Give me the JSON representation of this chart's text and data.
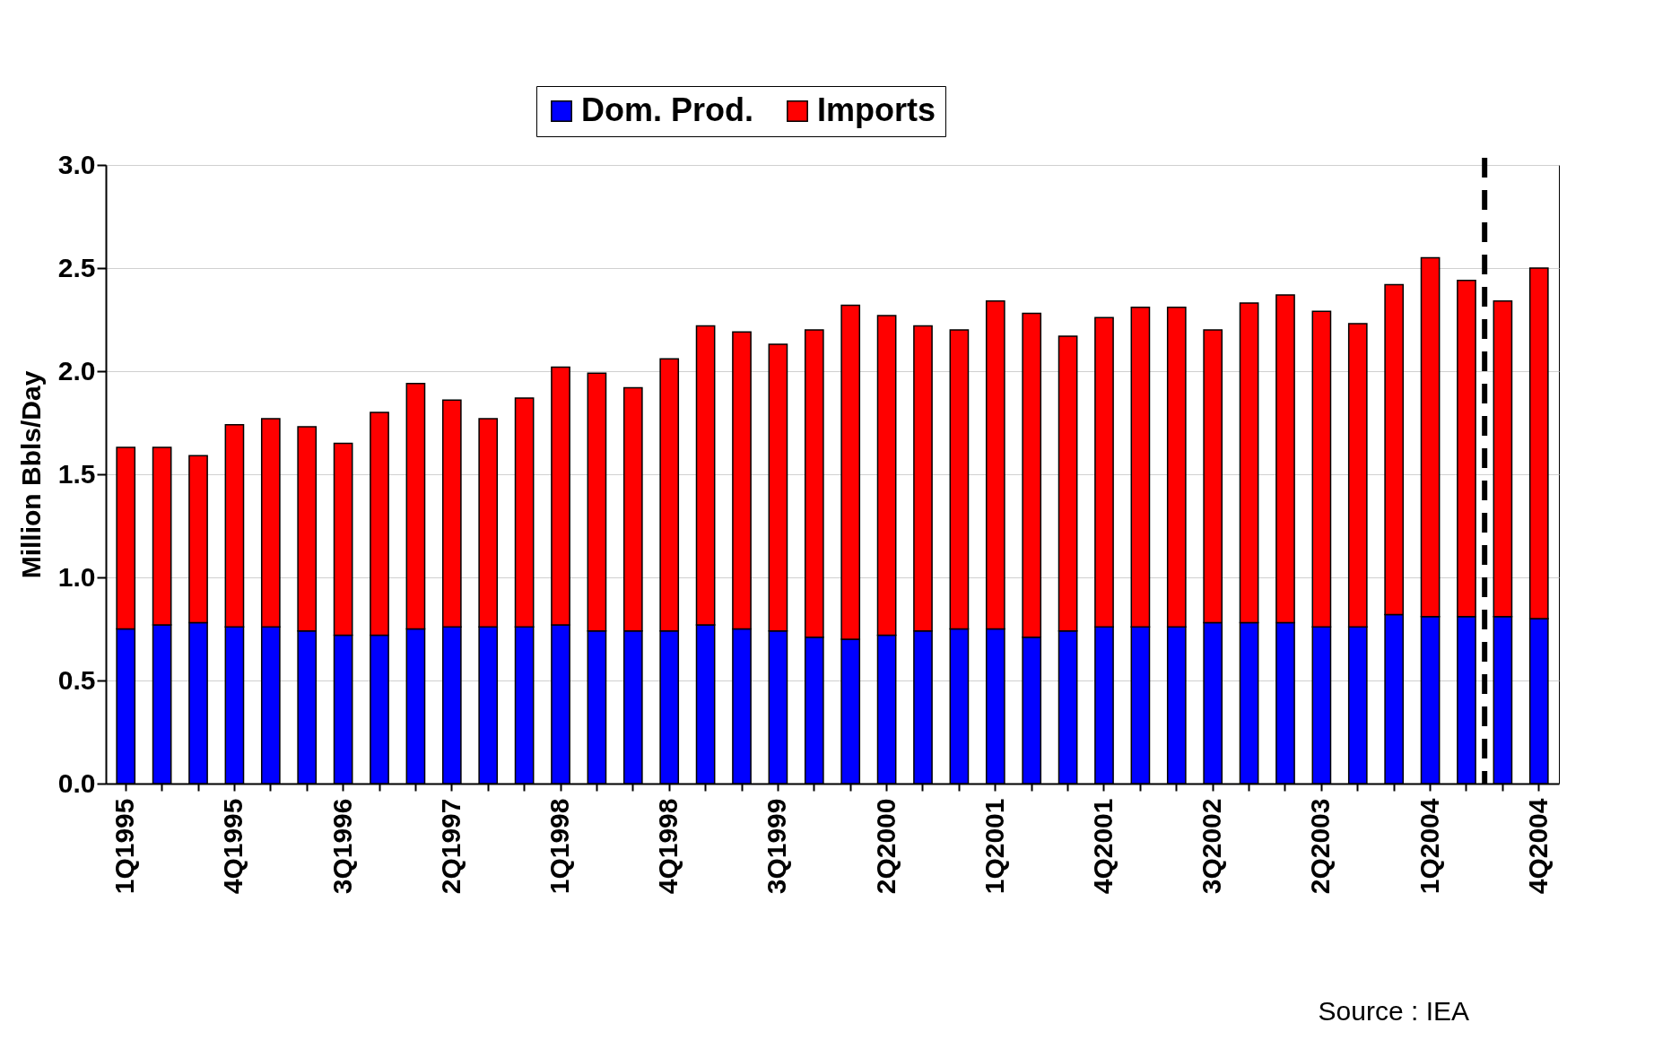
{
  "chart_data": {
    "type": "bar",
    "stacked": true,
    "ylabel": "Million Bbls/Day",
    "categories": [
      "1Q1995",
      null,
      null,
      "4Q1995",
      null,
      null,
      "3Q1996",
      null,
      null,
      "2Q1997",
      null,
      null,
      "1Q1998",
      null,
      null,
      "4Q1998",
      null,
      null,
      "3Q1999",
      null,
      null,
      "2Q2000",
      null,
      null,
      "1Q2001",
      null,
      null,
      "4Q2001",
      null,
      null,
      "3Q2002",
      null,
      null,
      "2Q2003",
      null,
      null,
      "1Q2004",
      null,
      null,
      "4Q2004"
    ],
    "series": [
      {
        "name": "Dom. Prod.",
        "color": "#0000ff",
        "values": [
          0.75,
          0.77,
          0.78,
          0.76,
          0.76,
          0.74,
          0.72,
          0.72,
          0.75,
          0.76,
          0.76,
          0.76,
          0.77,
          0.74,
          0.74,
          0.74,
          0.77,
          0.75,
          0.74,
          0.71,
          0.7,
          0.72,
          0.74,
          0.75,
          0.75,
          0.71,
          0.74,
          0.76,
          0.76,
          0.76,
          0.78,
          0.78,
          0.78,
          0.76,
          0.76,
          0.82,
          0.81,
          0.81,
          0.81,
          0.8
        ]
      },
      {
        "name": "Imports",
        "color": "#ff0000",
        "values": [
          0.88,
          0.86,
          0.81,
          0.98,
          1.01,
          0.99,
          0.93,
          1.08,
          1.19,
          1.1,
          1.01,
          1.11,
          1.25,
          1.25,
          1.18,
          1.32,
          1.45,
          1.44,
          1.39,
          1.49,
          1.62,
          1.55,
          1.48,
          1.45,
          1.59,
          1.57,
          1.43,
          1.5,
          1.55,
          1.55,
          1.42,
          1.55,
          1.59,
          1.53,
          1.47,
          1.6,
          1.74,
          1.63,
          1.53,
          1.7
        ]
      }
    ],
    "ylim": [
      0,
      3
    ],
    "yticks": [
      {
        "value": 0,
        "label": "0.0"
      },
      {
        "value": 0.5,
        "label": "0.5"
      },
      {
        "value": 1,
        "label": "1.0"
      },
      {
        "value": 1.5,
        "label": "1.5"
      },
      {
        "value": 2,
        "label": "2.0"
      },
      {
        "value": 2.5,
        "label": "2.5"
      },
      {
        "value": 3,
        "label": "3.0"
      }
    ],
    "grid": "y",
    "legend": "top",
    "annotations": [
      "Source : IEA"
    ]
  }
}
